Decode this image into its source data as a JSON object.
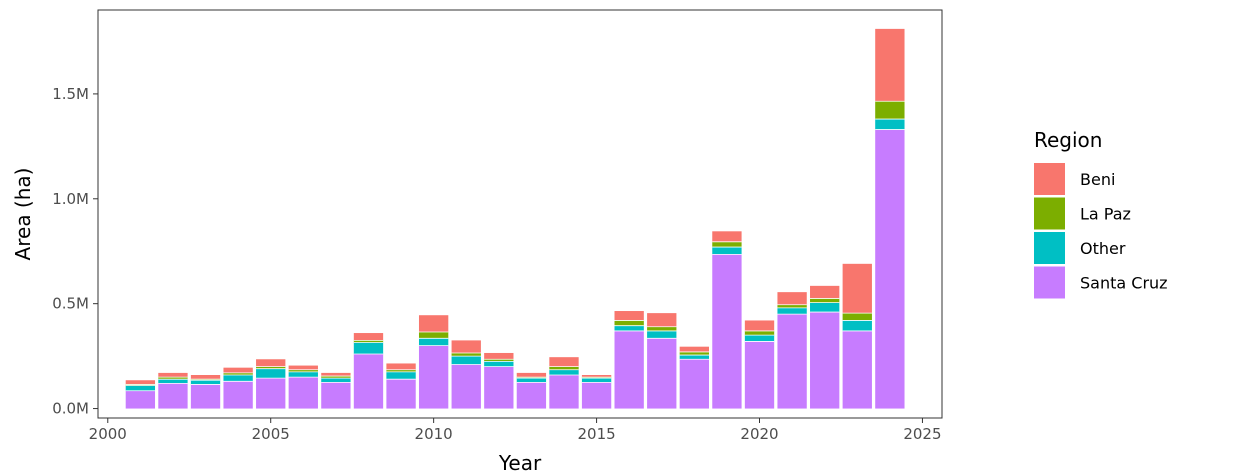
{
  "chart_data": {
    "type": "bar",
    "stacked": true,
    "x": [
      2001,
      2002,
      2003,
      2004,
      2005,
      2006,
      2007,
      2008,
      2009,
      2010,
      2011,
      2012,
      2013,
      2014,
      2015,
      2016,
      2017,
      2018,
      2019,
      2020,
      2021,
      2022,
      2023,
      2024
    ],
    "series": [
      {
        "name": "Santa Cruz",
        "color": "#C77CFF",
        "values": [
          85000,
          120000,
          115000,
          130000,
          145000,
          150000,
          125000,
          260000,
          140000,
          300000,
          210000,
          200000,
          125000,
          160000,
          125000,
          370000,
          335000,
          235000,
          735000,
          320000,
          450000,
          460000,
          370000,
          1330000
        ]
      },
      {
        "name": "Other",
        "color": "#00BFC4",
        "values": [
          25000,
          20000,
          20000,
          30000,
          45000,
          25000,
          20000,
          55000,
          35000,
          35000,
          40000,
          25000,
          20000,
          25000,
          20000,
          25000,
          35000,
          20000,
          35000,
          30000,
          30000,
          45000,
          50000,
          50000
        ]
      },
      {
        "name": "La Paz",
        "color": "#7CAE00",
        "values": [
          5000,
          10000,
          5000,
          10000,
          10000,
          10000,
          10000,
          10000,
          10000,
          30000,
          15000,
          10000,
          5000,
          15000,
          5000,
          25000,
          20000,
          15000,
          25000,
          20000,
          15000,
          20000,
          35000,
          85000
        ]
      },
      {
        "name": "Beni",
        "color": "#F8766D",
        "values": [
          20000,
          20000,
          20000,
          25000,
          35000,
          20000,
          15000,
          35000,
          30000,
          80000,
          60000,
          30000,
          20000,
          45000,
          10000,
          45000,
          65000,
          25000,
          50000,
          50000,
          60000,
          60000,
          235000,
          345000
        ]
      }
    ],
    "xlabel": "Year",
    "ylabel": "Area (ha)",
    "xlim": [
      1999.7,
      2025.6
    ],
    "ylim": [
      -45000,
      1900000
    ],
    "x_ticks": [
      2000,
      2005,
      2010,
      2015,
      2020,
      2025
    ],
    "x_tick_labels": [
      "2000",
      "2005",
      "2010",
      "2015",
      "2020",
      "2025"
    ],
    "y_ticks": [
      0,
      500000,
      1000000,
      1500000
    ],
    "y_tick_labels": [
      "0.0M",
      "0.5M",
      "1.0M",
      "1.5M"
    ],
    "grid": false,
    "legend": {
      "title": "Region",
      "position": "right",
      "entries": [
        {
          "label": "Beni",
          "color": "#F8766D"
        },
        {
          "label": "La Paz",
          "color": "#7CAE00"
        },
        {
          "label": "Other",
          "color": "#00BFC4"
        },
        {
          "label": "Santa Cruz",
          "color": "#C77CFF"
        }
      ]
    }
  }
}
